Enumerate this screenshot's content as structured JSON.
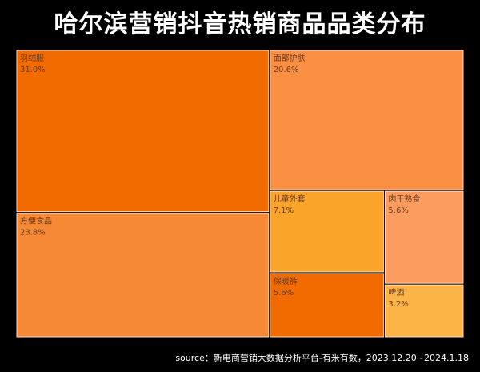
{
  "chart_data": {
    "type": "treemap",
    "title": "哈尔滨营销抖音热销商品品类分布",
    "categories": [
      "羽绒服",
      "面部护肤",
      "方便食品",
      "儿童外套",
      "肉干熟食",
      "保暖裤",
      "啤酒"
    ],
    "values": [
      31.0,
      20.6,
      23.8,
      7.1,
      5.6,
      5.6,
      3.2
    ],
    "labels": [
      "31.0%",
      "20.6%",
      "23.8%",
      "7.1%",
      "5.6%",
      "5.6%",
      "3.2%"
    ],
    "colors": [
      "#F26B00",
      "#FB8F44",
      "#F68935",
      "#FBA42A",
      "#FC9C5E",
      "#F26B00",
      "#FCB447"
    ],
    "source": "source：新电商营销大数据分析平台-有米有数，2023.12.20~2024.1.18"
  }
}
